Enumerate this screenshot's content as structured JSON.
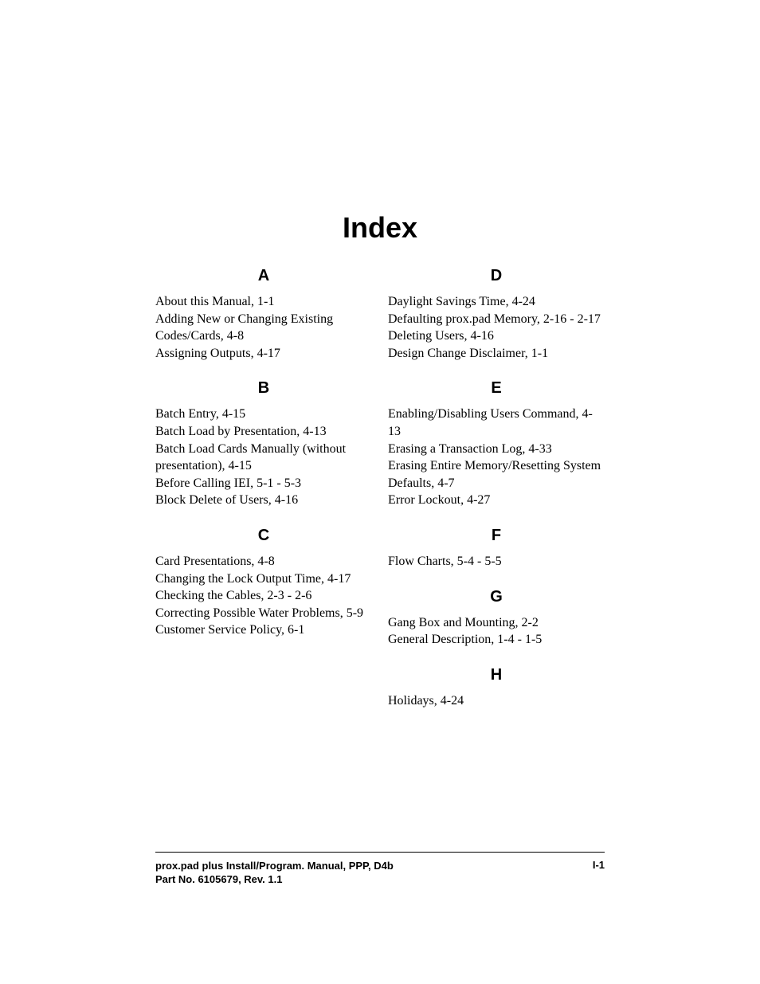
{
  "title": "Index",
  "left_column": {
    "sections": [
      {
        "heading": "A",
        "entries": [
          "About this Manual, 1-1",
          "Adding New or Changing Existing Codes/Cards, 4-8",
          "Assigning Outputs, 4-17"
        ]
      },
      {
        "heading": "B",
        "entries": [
          "Batch Entry, 4-15",
          "Batch Load by Presentation, 4-13",
          "Batch Load Cards Manually (without presentation), 4-15",
          "Before Calling IEI, 5-1 - 5-3",
          "Block Delete of Users, 4-16"
        ]
      },
      {
        "heading": "C",
        "entries": [
          "Card Presentations, 4-8",
          "Changing the Lock Output Time, 4-17",
          "Checking the Cables, 2-3 - 2-6",
          "Correcting Possible Water Problems, 5-9",
          "Customer Service Policy, 6-1"
        ]
      }
    ]
  },
  "right_column": {
    "sections": [
      {
        "heading": "D",
        "entries": [
          "Daylight Savings Time, 4-24",
          "Defaulting prox.pad Memory, 2-16 - 2-17",
          "Deleting Users, 4-16",
          "Design Change Disclaimer, 1-1"
        ]
      },
      {
        "heading": "E",
        "entries": [
          "Enabling/Disabling Users Command, 4-13",
          "Erasing a Transaction Log, 4-33",
          "Erasing Entire Memory/Resetting System Defaults, 4-7",
          "Error Lockout, 4-27"
        ]
      },
      {
        "heading": "F",
        "entries": [
          "Flow Charts, 5-4 - 5-5"
        ]
      },
      {
        "heading": "G",
        "entries": [
          "Gang Box and Mounting, 2-2",
          "General Description, 1-4 - 1-5"
        ]
      },
      {
        "heading": "H",
        "entries": [
          "Holidays, 4-24"
        ]
      }
    ]
  },
  "footer": {
    "line1": "prox.pad plus Install/Program. Manual, PPP, D4b",
    "line2": "Part No. 6105679, Rev. 1.1",
    "page": "I-1"
  },
  "styling": {
    "background_color": "#ffffff",
    "text_color": "#000000",
    "title_font": "Arial",
    "title_fontsize": 36,
    "title_fontweight": "bold",
    "heading_font": "Arial",
    "heading_fontsize": 20,
    "heading_fontweight": "bold",
    "body_font": "Georgia",
    "body_fontsize": 16,
    "footer_font": "Arial",
    "footer_fontsize": 13,
    "footer_fontweight": "bold",
    "footer_border_color": "#000000",
    "footer_border_width": 1.5
  }
}
